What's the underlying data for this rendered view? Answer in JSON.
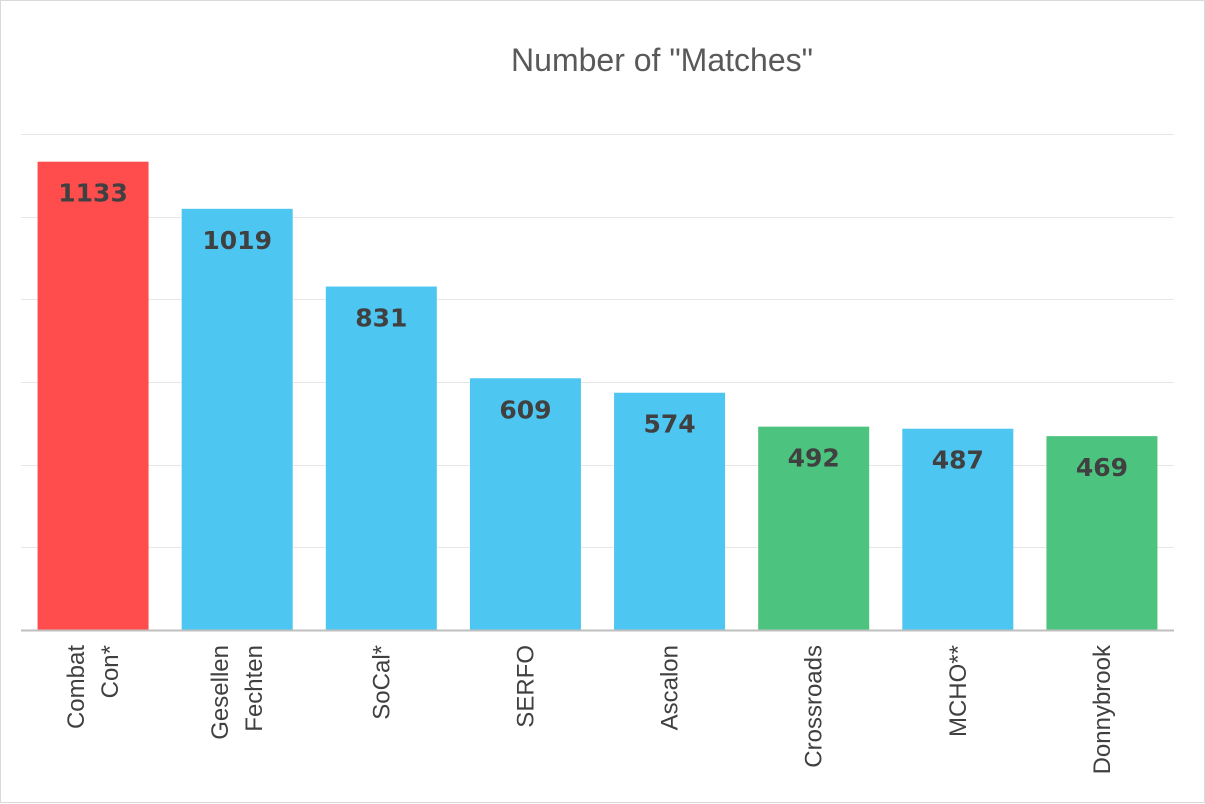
{
  "chart_data": {
    "type": "bar",
    "title": "Number of \"Matches\"",
    "xlabel": "",
    "ylabel": "",
    "ylim": [
      0,
      1200
    ],
    "grid": true,
    "legend": "none",
    "categories": [
      [
        "Combat",
        "Con*"
      ],
      [
        "Gesellen",
        "Fechten"
      ],
      [
        "SoCal*"
      ],
      [
        "SERFO"
      ],
      [
        "Ascalon"
      ],
      [
        "Crossroads"
      ],
      [
        "MCHO**"
      ],
      [
        "Donnybrook"
      ]
    ],
    "values": [
      1133,
      1019,
      831,
      609,
      574,
      492,
      487,
      469
    ],
    "bar_colors": [
      "#ff4d4d",
      "#4dc6f2",
      "#4dc6f2",
      "#4dc6f2",
      "#4dc6f2",
      "#4cc47f",
      "#4dc6f2",
      "#4cc47f"
    ]
  }
}
